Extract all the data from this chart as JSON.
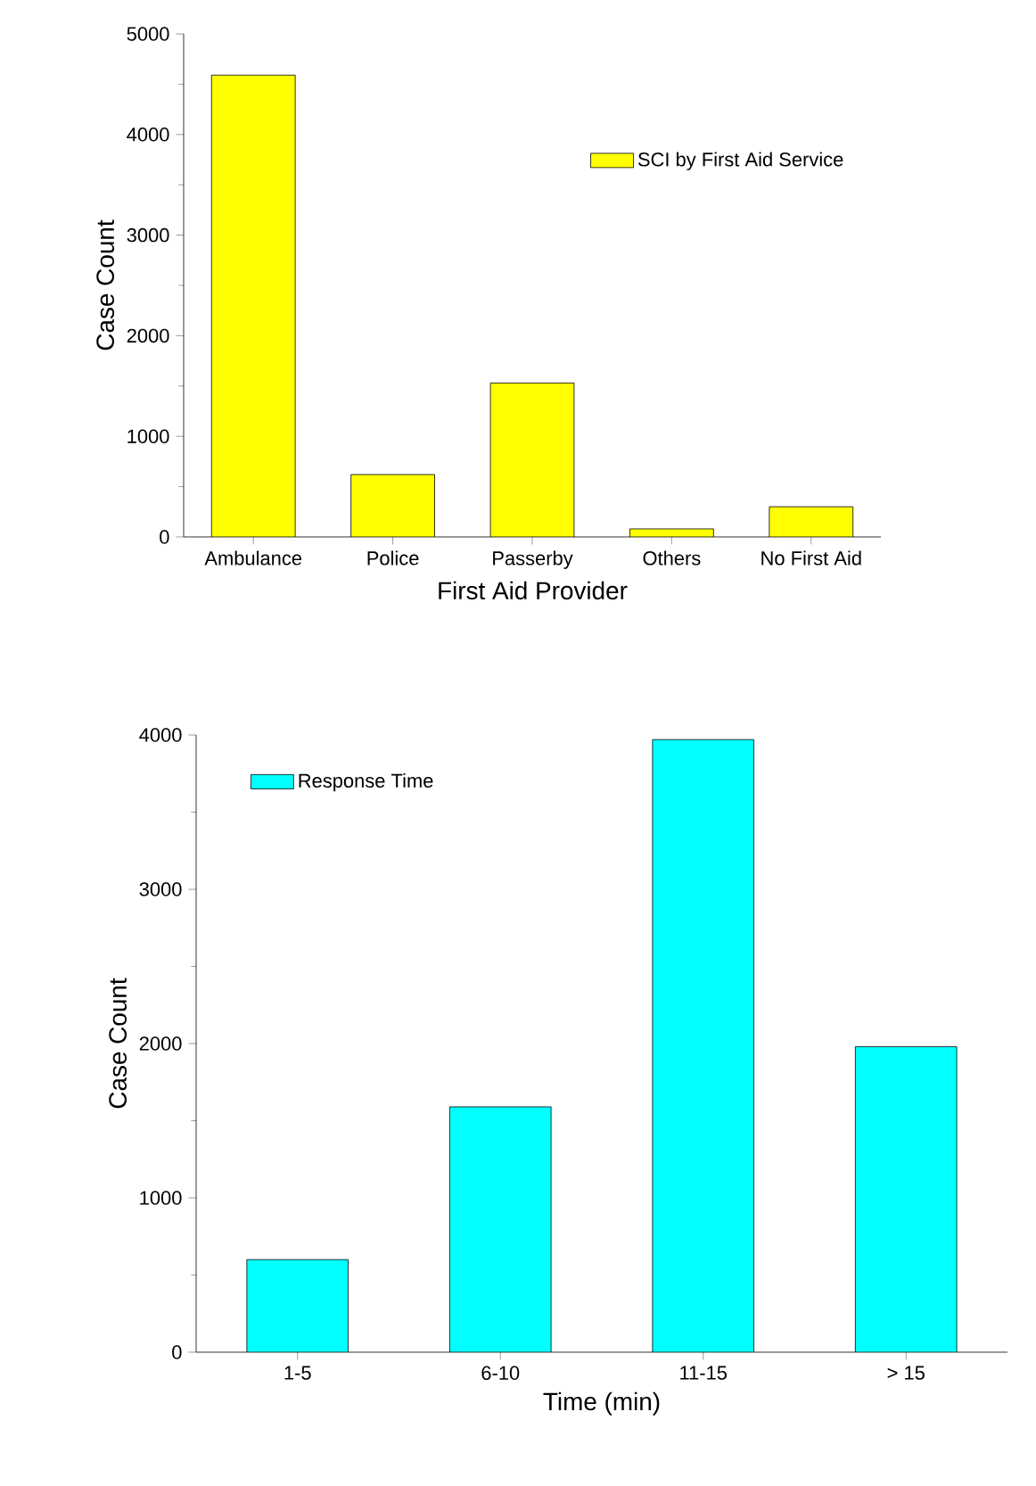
{
  "chart_data": [
    {
      "type": "bar",
      "categories": [
        "Ambulance",
        "Police",
        "Passerby",
        "Others",
        "No First Aid"
      ],
      "xlabel": "First Aid Provider",
      "ylabel": "Case Count",
      "series": [
        {
          "name": "SCI by First Aid Service",
          "color": "#ffff00",
          "values": [
            4590,
            620,
            1530,
            80,
            300
          ]
        }
      ],
      "ylim": [
        0,
        5000
      ],
      "yticks": [
        0,
        1000,
        2000,
        3000,
        4000,
        5000
      ],
      "legend": "top right"
    },
    {
      "type": "bar",
      "categories": [
        "1-5",
        "6-10",
        "11-15",
        "> 15"
      ],
      "xlabel": "Time (min)",
      "ylabel": "Case Count",
      "series": [
        {
          "name": "Response Time",
          "color": "#00ffff",
          "values": [
            600,
            1590,
            3970,
            1980
          ]
        }
      ],
      "ylim": [
        0,
        4000
      ],
      "yticks": [
        0,
        1000,
        2000,
        3000,
        4000
      ],
      "legend": "top left"
    }
  ]
}
